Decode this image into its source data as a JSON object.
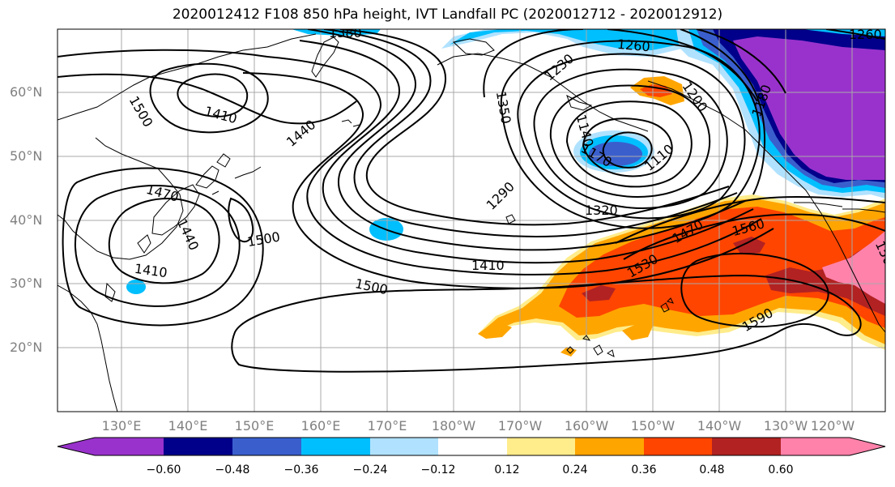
{
  "title": "2020012412 F108 850 hPa height, IVT Landfall PC (2020012712 - 2020012912)",
  "lat_labels": [
    "60°N",
    "50°N",
    "40°N",
    "30°N",
    "20°N"
  ],
  "lon_labels": [
    "130°E",
    "140°E",
    "150°E",
    "160°E",
    "170°E",
    "180°W",
    "170°W",
    "160°W",
    "150°W",
    "140°W",
    "130°W",
    "120°W"
  ],
  "contour_labels": [
    "1500",
    "1410",
    "1440",
    "1470",
    "1440",
    "1410",
    "1500",
    "1350",
    "1230",
    "1260",
    "1200",
    "1180",
    "1170",
    "1140",
    "1110",
    "1290",
    "1320",
    "1410",
    "1500",
    "1470",
    "1530",
    "1560",
    "1590",
    "1500",
    "1380",
    "1260"
  ],
  "colorbar": {
    "colors": [
      "#9932cc",
      "#00008b",
      "#3a5fcd",
      "#00bfff",
      "#b0e2ff",
      "#ffffff",
      "#ffec8b",
      "#ffa500",
      "#ff4500",
      "#b22222",
      "#ff82ab"
    ],
    "tick_labels": [
      "−0.60",
      "−0.48",
      "−0.36",
      "−0.24",
      "−0.12",
      "0.12",
      "0.24",
      "0.36",
      "0.48",
      "0.60"
    ]
  }
}
